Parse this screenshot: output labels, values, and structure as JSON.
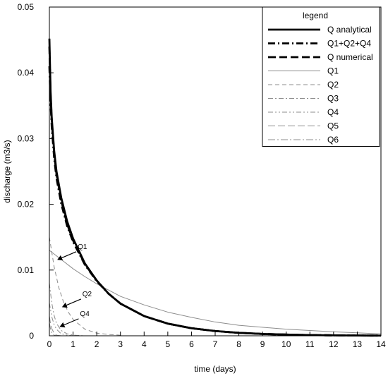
{
  "chart_data": {
    "type": "line",
    "xlabel": "time (days)",
    "ylabel": "discharge (m3/s)",
    "xlim": [
      0,
      14
    ],
    "ylim": [
      0,
      0.05
    ],
    "x_ticks": [
      "0",
      "1",
      "2",
      "3",
      "4",
      "5",
      "6",
      "7",
      "8",
      "9",
      "10",
      "11",
      "12",
      "13",
      "14"
    ],
    "y_ticks": [
      "0",
      "0.01",
      "0.02",
      "0.03",
      "0.04",
      "0.05"
    ],
    "grid": false,
    "legend": {
      "title": "legend",
      "position": "top-right",
      "entries": [
        {
          "name": "Q analytical",
          "style": "solid-thick",
          "color": "#000000"
        },
        {
          "name": "Q1+Q2+Q4",
          "style": "dashdot-thick",
          "color": "#000000"
        },
        {
          "name": "Q numerical",
          "style": "dash-thick",
          "color": "#000000"
        },
        {
          "name": "Q1",
          "style": "solid-thin",
          "color": "#8c8c8c"
        },
        {
          "name": "Q2",
          "style": "dash-thin",
          "color": "#8c8c8c"
        },
        {
          "name": "Q3",
          "style": "dashdot-thin",
          "color": "#8c8c8c"
        },
        {
          "name": "Q4",
          "style": "dashdotdot-thin",
          "color": "#8c8c8c"
        },
        {
          "name": "Q5",
          "style": "longdash-thin",
          "color": "#8c8c8c"
        },
        {
          "name": "Q6",
          "style": "longdashdot-thin",
          "color": "#8c8c8c"
        }
      ]
    },
    "series": [
      {
        "name": "Q analytical",
        "x": [
          0,
          0.05,
          0.1,
          0.2,
          0.3,
          0.5,
          0.75,
          1,
          1.5,
          2,
          2.5,
          3,
          4,
          5,
          6,
          7,
          8,
          9,
          10,
          11,
          12,
          13,
          14
        ],
        "y": [
          0.0452,
          0.0372,
          0.0331,
          0.0282,
          0.025,
          0.021,
          0.0174,
          0.0148,
          0.011,
          0.0084,
          0.0064,
          0.0049,
          0.003,
          0.00185,
          0.00115,
          0.00072,
          0.00045,
          0.00028,
          0.00018,
          0.00011,
          7e-05,
          4e-05,
          3e-05
        ]
      },
      {
        "name": "Q1+Q2+Q4",
        "x": [
          0,
          0.05,
          0.1,
          0.2,
          0.3,
          0.5,
          0.75,
          1,
          1.5,
          2,
          2.5,
          3,
          4,
          5,
          6,
          7,
          8,
          9,
          10,
          11,
          12,
          13,
          14
        ],
        "y": [
          0.041,
          0.0355,
          0.0318,
          0.0271,
          0.024,
          0.0201,
          0.0167,
          0.0143,
          0.0108,
          0.0083,
          0.0064,
          0.0049,
          0.003,
          0.00185,
          0.00115,
          0.00072,
          0.00045,
          0.00028,
          0.00018,
          0.00011,
          7e-05,
          4e-05,
          3e-05
        ]
      },
      {
        "name": "Q numerical",
        "x": [
          0,
          0.05,
          0.1,
          0.2,
          0.3,
          0.5,
          0.75,
          1,
          1.5,
          2,
          2.5,
          3,
          4,
          5,
          6,
          7,
          8,
          9,
          10,
          11,
          12,
          13,
          14
        ],
        "y": [
          0.044,
          0.0366,
          0.0327,
          0.0278,
          0.0246,
          0.0206,
          0.017,
          0.0145,
          0.0109,
          0.0084,
          0.0064,
          0.0049,
          0.003,
          0.00185,
          0.00115,
          0.00072,
          0.00045,
          0.00028,
          0.00018,
          0.00011,
          7e-05,
          4e-05,
          3e-05
        ]
      },
      {
        "name": "Q1",
        "x": [
          0,
          0.5,
          1,
          1.5,
          2,
          3,
          4,
          5,
          6,
          7,
          8,
          10,
          12,
          14
        ],
        "y": [
          0.013,
          0.0116,
          0.0102,
          0.009,
          0.0079,
          0.006,
          0.0047,
          0.0036,
          0.0028,
          0.0021,
          0.0016,
          0.001,
          0.0006,
          0.0003
        ]
      },
      {
        "name": "Q2",
        "x": [
          0,
          0.2,
          0.4,
          0.6,
          0.8,
          1,
          1.5,
          2,
          2.5,
          3
        ],
        "y": [
          0.015,
          0.0105,
          0.0073,
          0.0051,
          0.0036,
          0.0025,
          0.001,
          0.0004,
          0.0002,
          0.0001
        ]
      },
      {
        "name": "Q3",
        "x": [
          0,
          0.1,
          0.2,
          0.3,
          0.5,
          0.75,
          1,
          1.5
        ],
        "y": [
          0.008,
          0.005,
          0.0031,
          0.0019,
          0.0008,
          0.0003,
          0.0001,
          0.0
        ]
      },
      {
        "name": "Q4",
        "x": [
          0,
          0.1,
          0.2,
          0.3,
          0.5,
          0.75,
          1
        ],
        "y": [
          0.005,
          0.0029,
          0.0017,
          0.001,
          0.0003,
          0.0001,
          0.0
        ]
      },
      {
        "name": "Q5",
        "x": [
          0,
          0.05,
          0.1,
          0.2,
          0.3,
          0.5
        ],
        "y": [
          0.003,
          0.0018,
          0.0011,
          0.0004,
          0.0001,
          0.0
        ]
      },
      {
        "name": "Q6",
        "x": [
          0,
          0.05,
          0.1,
          0.2,
          0.3
        ],
        "y": [
          0.002,
          0.001,
          0.0005,
          0.0001,
          0.0
        ]
      }
    ],
    "annotations": [
      {
        "text": "Q1",
        "target_x": 0.3,
        "target_y": 0.0115
      },
      {
        "text": "Q2",
        "target_x": 0.5,
        "target_y": 0.0043
      },
      {
        "text": "Q4",
        "target_x": 0.4,
        "target_y": 0.0013
      }
    ]
  }
}
